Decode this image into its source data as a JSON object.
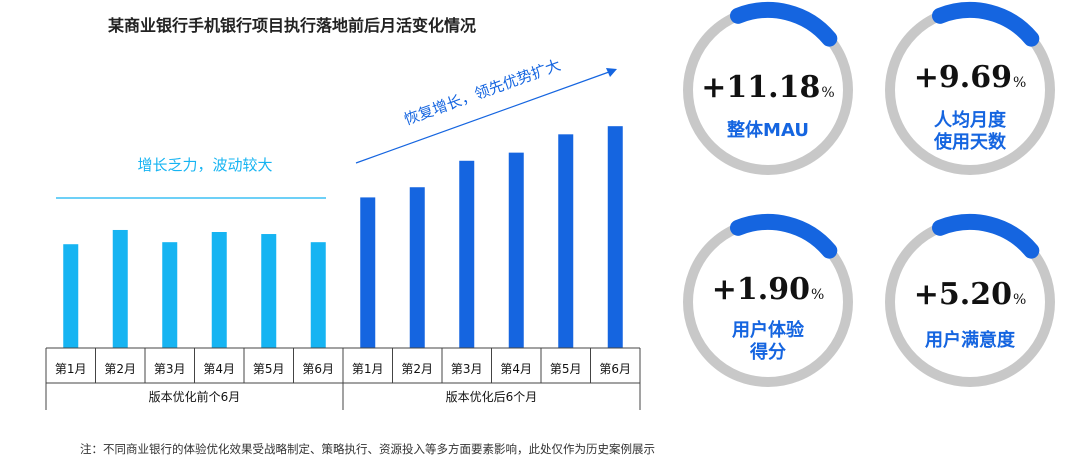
{
  "title": "某商业银行手机银行项目执行落地前后月活变化情况",
  "chart_data": {
    "type": "bar",
    "groups": [
      {
        "label": "版本优化前个6月",
        "categories": [
          "第1月",
          "第2月",
          "第3月",
          "第4月",
          "第5月",
          "第6月"
        ],
        "values": [
          51,
          58,
          52,
          57,
          56,
          52
        ],
        "color": "#16b4f2"
      },
      {
        "label": "版本优化后6个月",
        "categories": [
          "第1月",
          "第2月",
          "第3月",
          "第4月",
          "第5月",
          "第6月"
        ],
        "values": [
          74,
          79,
          92,
          96,
          105,
          109
        ],
        "color": "#1565e0"
      }
    ],
    "ylim": [
      0,
      130
    ],
    "annotations": [
      {
        "text": "增长乏力，波动较大",
        "group": 0
      },
      {
        "text": "恢复增长，领先优势扩大",
        "group": 1
      }
    ]
  },
  "kpis": [
    {
      "value": "+11.18",
      "unit": "%",
      "label": [
        "整体MAU"
      ]
    },
    {
      "value": "+9.69",
      "unit": "%",
      "label": [
        "人均月度",
        "使用天数"
      ]
    },
    {
      "value": "+1.90",
      "unit": "%",
      "label": [
        "用户体验",
        "得分"
      ]
    },
    {
      "value": "+5.20",
      "unit": "%",
      "label": [
        "用户满意度"
      ]
    }
  ],
  "colors": {
    "ring_track": "#c8c8c8",
    "ring_arc": "#1565e0",
    "accent": "#1565e0",
    "light_blue": "#16b4f2"
  },
  "note": "注：不同商业银行的体验优化效果受战略制定、策略执行、资源投入等多方面要素影响，此处仅作为历史案例展示"
}
